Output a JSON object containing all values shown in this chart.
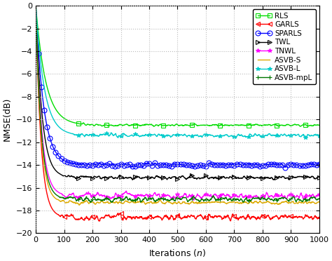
{
  "xlabel": "Iterations (n)",
  "ylabel": "NMSE(dB)",
  "xlim": [
    0,
    1000
  ],
  "ylim": [
    -20,
    0
  ],
  "yticks": [
    0,
    -2,
    -4,
    -6,
    -8,
    -10,
    -12,
    -14,
    -16,
    -18,
    -20
  ],
  "xticks": [
    0,
    100,
    200,
    300,
    400,
    500,
    600,
    700,
    800,
    900,
    1000
  ],
  "series": [
    {
      "label": "RLS",
      "color": "#00dd00",
      "marker": "s",
      "mfc": "none",
      "mec": "#00dd00",
      "ms": 4,
      "lw": 1.0,
      "steady": -10.5,
      "tau": 35,
      "noise": 0.12,
      "mevery": 100,
      "mstart": 150
    },
    {
      "label": "GARLS",
      "color": "#ff0000",
      "marker": "<",
      "mfc": "none",
      "mec": "#ff0000",
      "ms": 4,
      "lw": 1.0,
      "steady": -18.6,
      "tau": 18,
      "noise": 0.35,
      "mevery": 100,
      "mstart": 100
    },
    {
      "label": "SPARLS",
      "color": "#0000ff",
      "marker": "o",
      "mfc": "none",
      "mec": "#0000ff",
      "ms": 5,
      "lw": 1.0,
      "steady": -14.0,
      "tau": 28,
      "noise": 0.18,
      "mevery": 10,
      "mstart": 10
    },
    {
      "label": "TWL",
      "color": "#000000",
      "marker": ">",
      "mfc": "none",
      "mec": "#000000",
      "ms": 4,
      "lw": 1.0,
      "steady": -15.1,
      "tau": 22,
      "noise": 0.2,
      "mevery": 50,
      "mstart": 150
    },
    {
      "label": "TNWL",
      "color": "#ff00ff",
      "marker": "*",
      "mfc": "#ff00ff",
      "mec": "#ff00ff",
      "ms": 4,
      "lw": 1.0,
      "steady": -16.7,
      "tau": 20,
      "noise": 0.35,
      "mevery": 50,
      "mstart": 150
    },
    {
      "label": "ASVB-S",
      "color": "#ddaa00",
      "marker": "None",
      "mfc": "none",
      "mec": "#ddaa00",
      "ms": 4,
      "lw": 1.0,
      "steady": -17.3,
      "tau": 18,
      "noise": 0.2,
      "mevery": 100,
      "mstart": 100
    },
    {
      "label": "ASVB-L",
      "color": "#00cccc",
      "marker": "*",
      "mfc": "#00cccc",
      "mec": "#00cccc",
      "ms": 4,
      "lw": 1.0,
      "steady": -11.4,
      "tau": 30,
      "noise": 0.22,
      "mevery": 50,
      "mstart": 150
    },
    {
      "label": "ASVB-mpL",
      "color": "#007700",
      "marker": "+",
      "mfc": "#007700",
      "mec": "#007700",
      "ms": 4,
      "lw": 1.0,
      "steady": -17.0,
      "tau": 19,
      "noise": 0.28,
      "mevery": 50,
      "mstart": 150
    }
  ],
  "background_color": "#ffffff",
  "grid_color": "#bbbbbb",
  "legend_fontsize": 7.5,
  "axis_fontsize": 9,
  "tick_fontsize": 8
}
